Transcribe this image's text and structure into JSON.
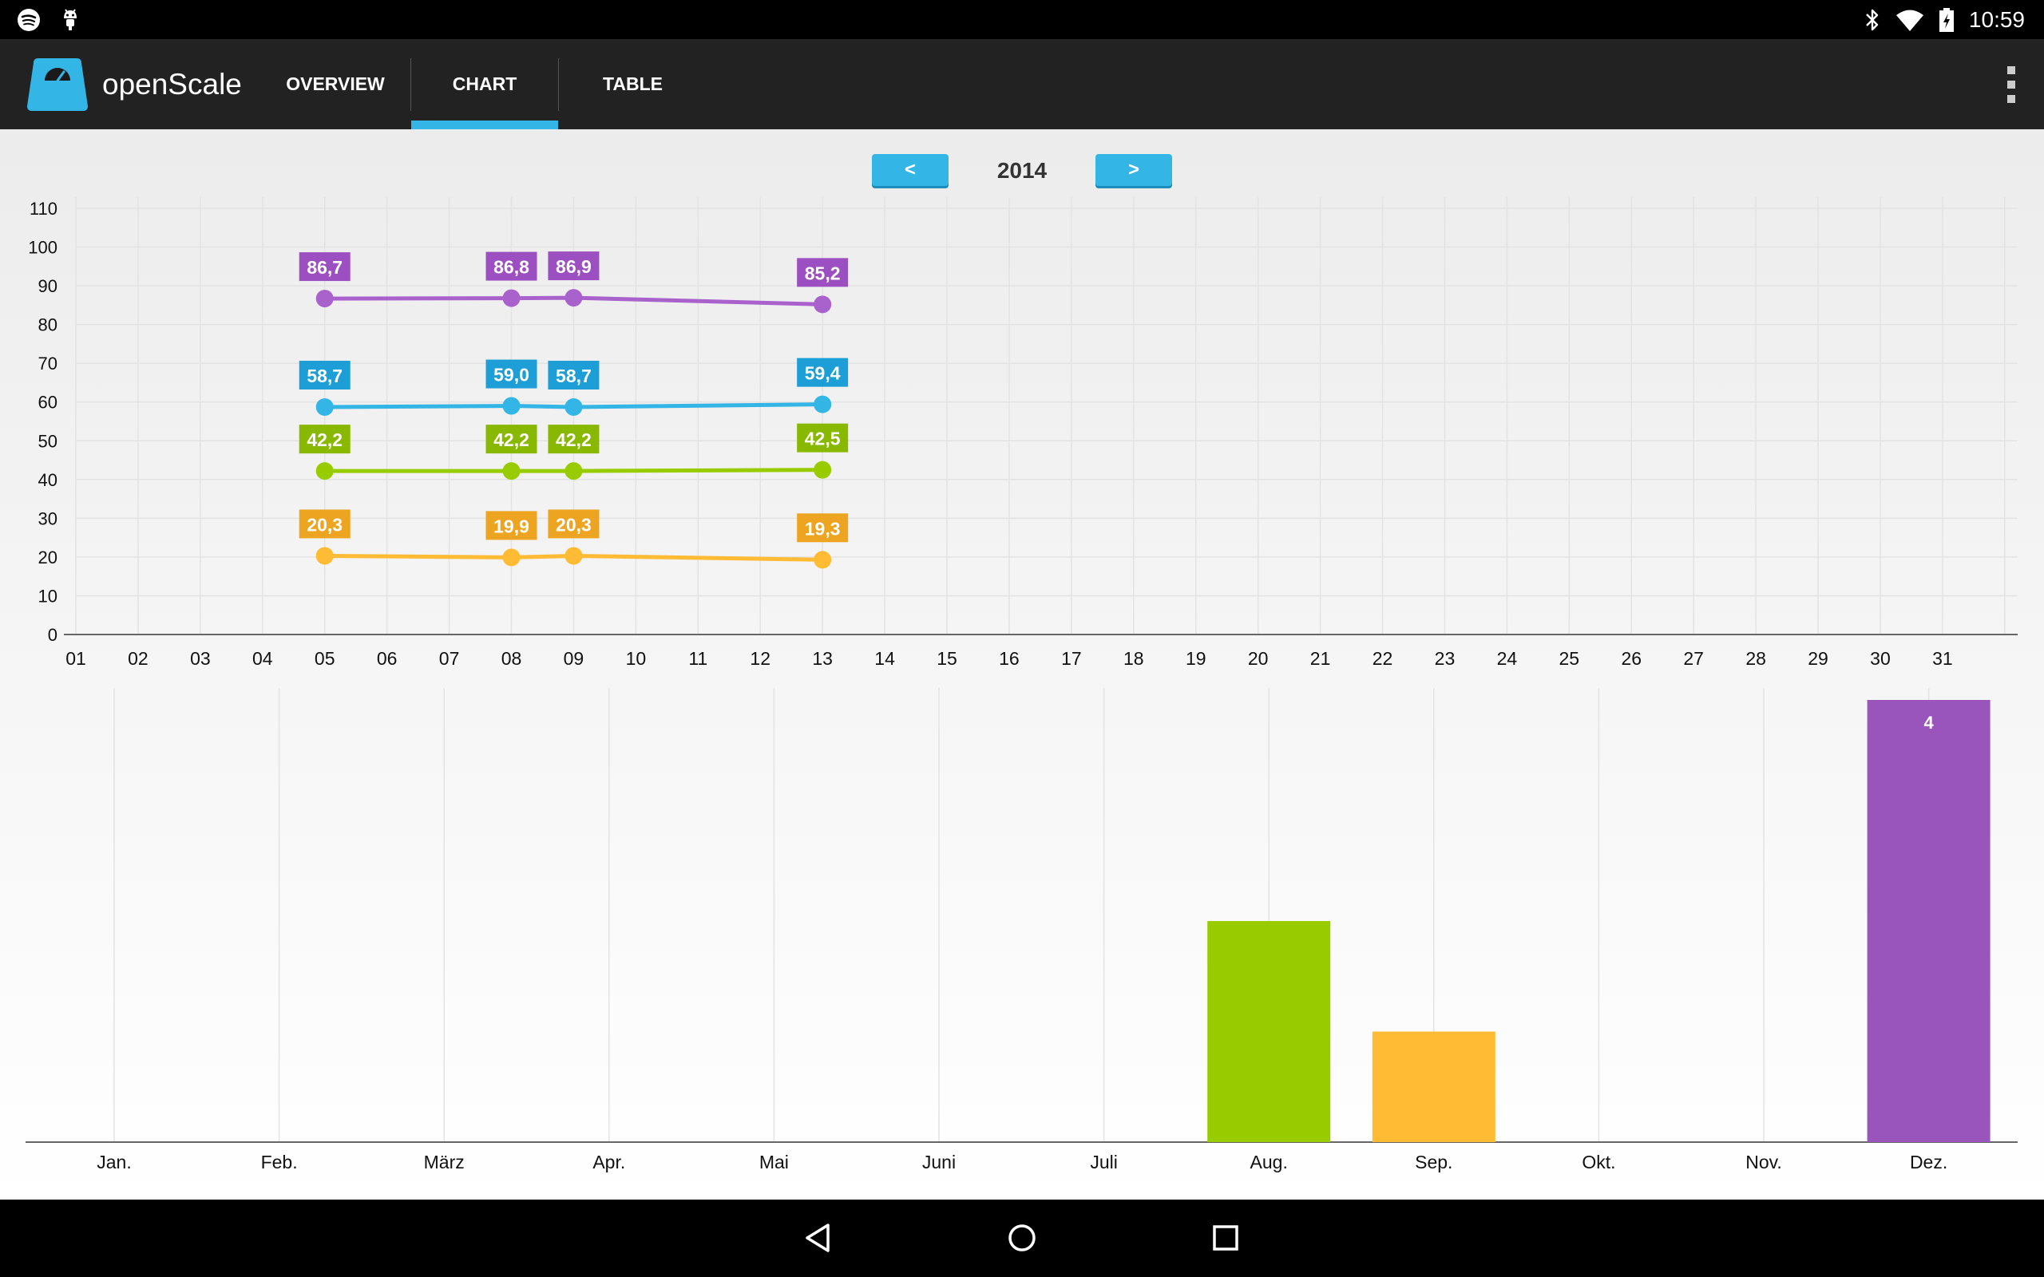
{
  "status_bar": {
    "time": "10:59",
    "left_icons": [
      "spotify-icon",
      "android-debug-icon"
    ],
    "right_icons": [
      "bluetooth-icon",
      "wifi-icon",
      "battery-charging-icon"
    ]
  },
  "app": {
    "title": "openScale",
    "tabs": [
      {
        "label": "OVERVIEW",
        "selected": false
      },
      {
        "label": "CHART",
        "selected": true
      },
      {
        "label": "TABLE",
        "selected": false
      }
    ],
    "accent_color": "#33b5e5"
  },
  "year_nav": {
    "prev_label": "<",
    "year": "2014",
    "next_label": ">"
  },
  "chart_data": [
    {
      "type": "line",
      "x": [
        "01",
        "02",
        "03",
        "04",
        "05",
        "06",
        "07",
        "08",
        "09",
        "10",
        "11",
        "12",
        "13",
        "14",
        "15",
        "16",
        "17",
        "18",
        "19",
        "20",
        "21",
        "22",
        "23",
        "24",
        "25",
        "26",
        "27",
        "28",
        "29",
        "30",
        "31"
      ],
      "ylim": [
        0,
        110
      ],
      "yticks": [
        "0",
        "10",
        "20",
        "30",
        "40",
        "50",
        "60",
        "70",
        "80",
        "90",
        "100",
        "110"
      ],
      "grid": true,
      "series": [
        {
          "color": "#a962cc",
          "label_color": "#9c4fc1",
          "points": [
            {
              "day": 5,
              "value": 86.7,
              "label": "86,7"
            },
            {
              "day": 8,
              "value": 86.8,
              "label": "86,8"
            },
            {
              "day": 9,
              "value": 86.9,
              "label": "86,9"
            },
            {
              "day": 13,
              "value": 85.2,
              "label": "85,2"
            }
          ]
        },
        {
          "color": "#33b5e5",
          "label_color": "#1e9ed6",
          "points": [
            {
              "day": 5,
              "value": 58.7,
              "label": "58,7"
            },
            {
              "day": 8,
              "value": 59.0,
              "label": "59,0"
            },
            {
              "day": 9,
              "value": 58.7,
              "label": "58,7"
            },
            {
              "day": 13,
              "value": 59.4,
              "label": "59,4"
            }
          ]
        },
        {
          "color": "#99cc00",
          "label_color": "#88b800",
          "points": [
            {
              "day": 5,
              "value": 42.2,
              "label": "42,2"
            },
            {
              "day": 8,
              "value": 42.2,
              "label": "42,2"
            },
            {
              "day": 9,
              "value": 42.2,
              "label": "42,2"
            },
            {
              "day": 13,
              "value": 42.5,
              "label": "42,5"
            }
          ]
        },
        {
          "color": "#ffbb33",
          "label_color": "#eda521",
          "points": [
            {
              "day": 5,
              "value": 20.3,
              "label": "20,3"
            },
            {
              "day": 8,
              "value": 19.9,
              "label": "19,9"
            },
            {
              "day": 9,
              "value": 20.3,
              "label": "20,3"
            },
            {
              "day": 13,
              "value": 19.3,
              "label": "19,3"
            }
          ]
        }
      ]
    },
    {
      "type": "bar",
      "categories": [
        "Jan.",
        "Feb.",
        "März",
        "Apr.",
        "Mai",
        "Juni",
        "Juli",
        "Aug.",
        "Sep.",
        "Okt.",
        "Nov.",
        "Dez."
      ],
      "values": [
        0,
        0,
        0,
        0,
        0,
        0,
        0,
        2,
        1,
        0,
        0,
        4
      ],
      "bar_colors": {
        "7": "#99cc00",
        "8": "#ffbb33",
        "11": "#9955bb"
      },
      "value_labels": {
        "11": "4"
      },
      "ylim": [
        0,
        4
      ],
      "grid": true
    }
  ]
}
